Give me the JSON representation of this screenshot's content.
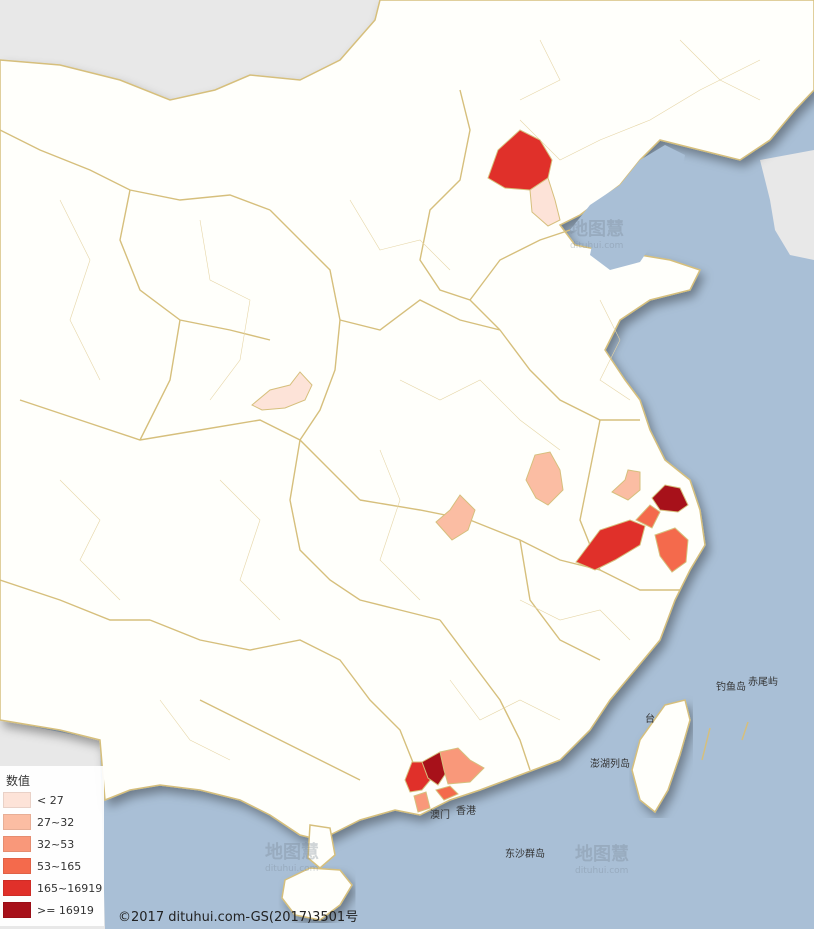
{
  "legend": {
    "title": "数值",
    "items": [
      {
        "label": "< 27",
        "color": "#fde3d8"
      },
      {
        "label": "27~32",
        "color": "#fbbda3"
      },
      {
        "label": "32~53",
        "color": "#f9987a"
      },
      {
        "label": "53~165",
        "color": "#f46a4c"
      },
      {
        "label": "165~16919",
        "color": "#e0302a"
      },
      {
        "label": ">= 16919",
        "color": "#a7111a"
      }
    ]
  },
  "copyright": "©2017 dituhui.com-GS(2017)3501号",
  "place_labels": {
    "diaoyu": "钓鱼岛",
    "chiwei": "赤尾屿",
    "penghu": "澎湖列岛",
    "macau": "澳门",
    "hongkong": "香港",
    "dongsha": "东沙群岛",
    "taiwan_tai": "台"
  },
  "watermark": {
    "text": "地图慧",
    "url": "dituhui.com"
  },
  "colors": {
    "sea": "#a9bfd6",
    "land": "#fffffb",
    "border": "#d6bf7c",
    "foreign": "#e9e9e9"
  }
}
